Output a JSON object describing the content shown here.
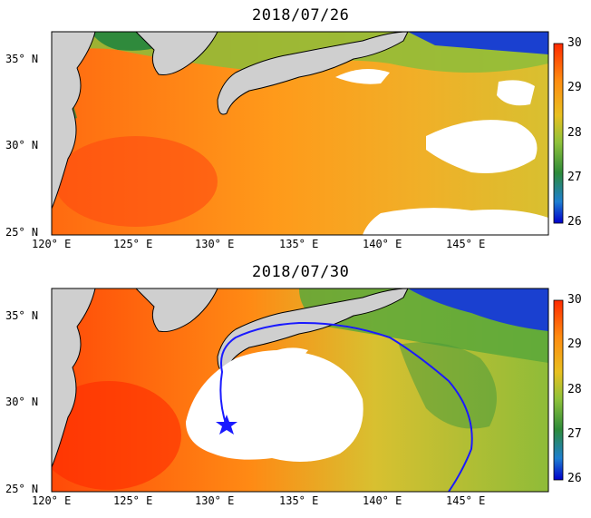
{
  "panels": [
    {
      "title": "2018/07/26",
      "lat_labels": [
        "35° N",
        "30° N",
        "25° N"
      ],
      "lon_labels": [
        "120° E",
        "125° E",
        "130° E",
        "135° E",
        "140° E",
        "145° E"
      ],
      "colorbar_ticks": [
        "30",
        "29",
        "28",
        "27",
        "26"
      ],
      "has_typhoon_track": false
    },
    {
      "title": "2018/07/30",
      "lat_labels": [
        "35° N",
        "30° N",
        "25° N"
      ],
      "lon_labels": [
        "120° E",
        "125° E",
        "130° E",
        "135° E",
        "140° E",
        "145° E"
      ],
      "colorbar_ticks": [
        "30",
        "29",
        "28",
        "27",
        "26"
      ],
      "has_typhoon_track": true
    }
  ],
  "colors": {
    "land": "#cfcfcf",
    "cloud_mask": "#ffffff",
    "track": "#1a1aff",
    "colorbar": [
      "#0000cc",
      "#1e7fd0",
      "#2e8b3a",
      "#8fc23a",
      "#e8c020",
      "#ff8a10",
      "#ff2a00"
    ]
  },
  "legend_range": [
    26,
    30
  ],
  "icons": {
    "typhoon_position": "star-icon"
  }
}
